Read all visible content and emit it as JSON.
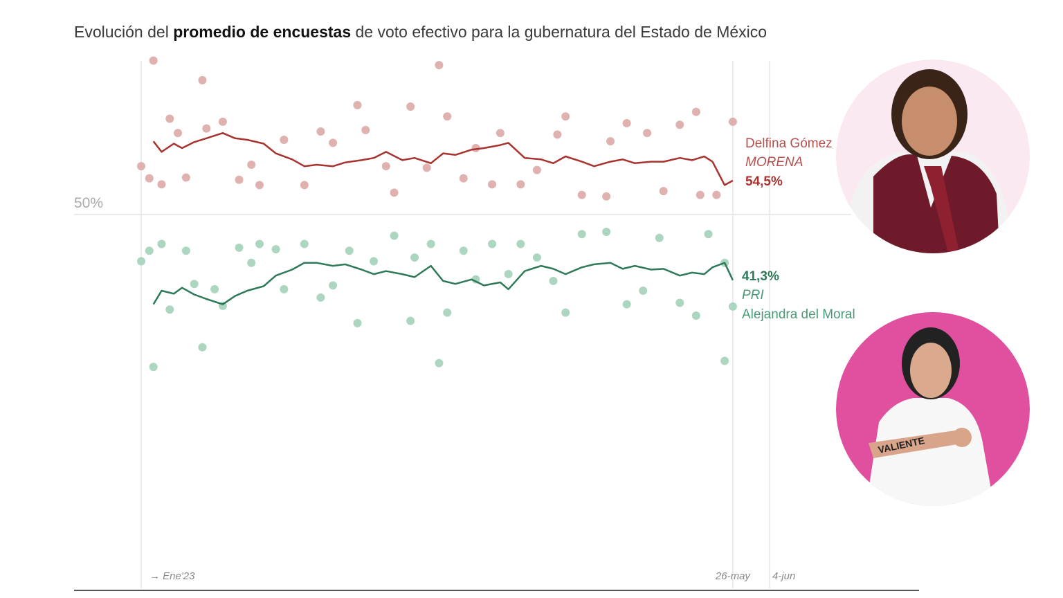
{
  "chart_data": {
    "type": "line",
    "title_parts": [
      "Evolución del ",
      "promedio de encuestas",
      " de voto efectivo para la gubernatura del Estado de México"
    ],
    "xlim": [
      0,
      154
    ],
    "xticks": [
      {
        "value": 0,
        "label": "→ Ene'23"
      },
      {
        "value": 145,
        "label": "26-may"
      },
      {
        "value": 154,
        "label": "4-jun"
      }
    ],
    "ylim": [
      0,
      71
    ],
    "yticks": [
      {
        "value": 50,
        "label": "50%"
      }
    ],
    "grid": true,
    "series": [
      {
        "name": "Delfina Gómez",
        "party": "MORENA",
        "end_label": "54,5%",
        "color": "#a8322d",
        "dot_color": "#d9a3a1",
        "x": [
          3,
          5,
          8,
          10,
          13,
          16,
          20,
          23,
          26,
          30,
          33,
          37,
          40,
          43,
          47,
          50,
          54,
          57,
          60,
          64,
          67,
          71,
          74,
          77,
          81,
          84,
          88,
          90,
          94,
          98,
          101,
          104,
          108,
          111,
          115,
          118,
          121,
          125,
          128,
          132,
          135,
          138,
          140,
          143,
          145
        ],
        "values": [
          59.7,
          58.3,
          59.4,
          58.8,
          59.6,
          60.1,
          60.8,
          60.1,
          59.9,
          59.4,
          58.1,
          57.3,
          56.4,
          56.6,
          56.4,
          56.9,
          57.2,
          57.5,
          58.3,
          57.2,
          57.5,
          56.8,
          58.1,
          57.9,
          58.6,
          58.8,
          59.2,
          59.5,
          57.5,
          57.3,
          56.8,
          57.7,
          57.0,
          56.4,
          57.0,
          57.3,
          56.8,
          57.0,
          57.0,
          57.5,
          57.2,
          57.7,
          57.0,
          53.9,
          54.5
        ],
        "polls_x": [
          0,
          2,
          3,
          5,
          7,
          9,
          11,
          15,
          16,
          20,
          24,
          27,
          29,
          35,
          40,
          44,
          47,
          53,
          55,
          60,
          62,
          66,
          70,
          73,
          75,
          79,
          82,
          86,
          88,
          93,
          97,
          102,
          104,
          108,
          114,
          115,
          119,
          124,
          128,
          132,
          136,
          137,
          141,
          145
        ],
        "polls": [
          56.4,
          54.8,
          70.4,
          54.0,
          62.7,
          60.8,
          54.9,
          67.8,
          61.4,
          62.3,
          54.6,
          56.6,
          53.9,
          59.9,
          53.9,
          61.0,
          59.5,
          64.5,
          61.2,
          56.4,
          52.9,
          64.3,
          56.2,
          69.8,
          63.0,
          54.8,
          58.8,
          54.0,
          60.8,
          54.0,
          55.9,
          60.6,
          63.0,
          52.6,
          52.4,
          59.7,
          62.1,
          60.8,
          53.1,
          61.9,
          63.6,
          52.6,
          52.6,
          62.3
        ]
      },
      {
        "name": "Alejandra del Moral",
        "party": "PRI",
        "end_label": "41,3%",
        "color": "#2e7a58",
        "dot_color": "#9fcfb6",
        "x": [
          3,
          5,
          8,
          10,
          13,
          16,
          20,
          23,
          26,
          30,
          33,
          37,
          40,
          43,
          47,
          50,
          54,
          57,
          60,
          64,
          67,
          71,
          74,
          77,
          81,
          84,
          88,
          90,
          94,
          98,
          101,
          104,
          108,
          111,
          115,
          118,
          121,
          125,
          128,
          132,
          135,
          138,
          140,
          143,
          145
        ],
        "values": [
          38.1,
          39.9,
          39.5,
          40.3,
          39.4,
          38.8,
          38.1,
          39.2,
          39.9,
          40.5,
          41.9,
          42.7,
          43.6,
          43.6,
          43.2,
          43.4,
          42.7,
          42.1,
          42.5,
          42.1,
          41.7,
          43.2,
          41.2,
          40.8,
          41.4,
          40.6,
          41.0,
          40.1,
          42.5,
          43.2,
          42.8,
          42.1,
          43.0,
          43.4,
          43.6,
          42.8,
          43.2,
          42.7,
          42.8,
          41.9,
          42.3,
          42.1,
          43.0,
          43.6,
          41.3
        ],
        "polls_x": [
          0,
          2,
          3,
          5,
          7,
          11,
          13,
          15,
          18,
          20,
          24,
          27,
          29,
          33,
          35,
          40,
          44,
          47,
          51,
          53,
          57,
          62,
          66,
          67,
          71,
          73,
          75,
          79,
          82,
          86,
          90,
          93,
          97,
          101,
          104,
          108,
          114,
          119,
          123,
          127,
          132,
          136,
          139,
          143,
          143,
          145
        ],
        "polls": [
          43.8,
          45.2,
          29.8,
          46.1,
          37.4,
          45.2,
          40.8,
          32.4,
          40.1,
          37.9,
          45.6,
          43.6,
          46.1,
          45.4,
          40.1,
          46.1,
          39.0,
          40.6,
          45.2,
          35.6,
          43.8,
          47.2,
          35.9,
          44.3,
          46.1,
          30.3,
          37.0,
          45.2,
          41.4,
          46.1,
          42.1,
          46.1,
          44.3,
          41.2,
          37.0,
          47.4,
          47.7,
          38.1,
          39.9,
          46.9,
          38.3,
          36.6,
          47.4,
          43.6,
          30.6,
          37.8
        ]
      }
    ]
  },
  "photo_text": "VALIENTE"
}
